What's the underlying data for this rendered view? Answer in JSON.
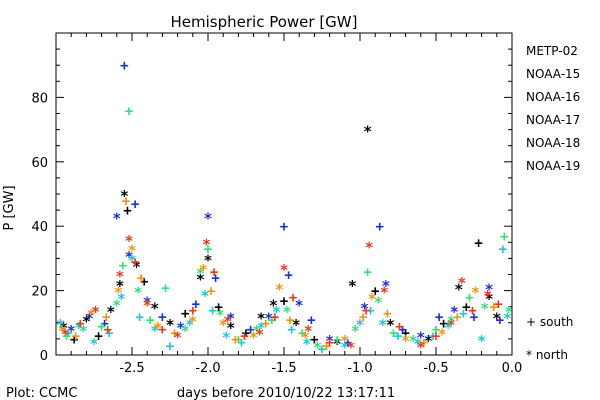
{
  "chart_data": {
    "type": "scatter",
    "title": "Hemispheric Power [GW]",
    "xlabel": "days before 2010/10/22 13:17:11",
    "ylabel": "P [GW]",
    "xlim": [
      -3.0,
      0.0
    ],
    "ylim": [
      0,
      100
    ],
    "x_ticks": [
      {
        "value": -2.5,
        "label": "-2.5"
      },
      {
        "value": -2.0,
        "label": "-2.0"
      },
      {
        "value": -1.5,
        "label": "-1.5"
      },
      {
        "value": -1.0,
        "label": "-1.0"
      },
      {
        "value": -0.5,
        "label": "-0.5"
      },
      {
        "value": 0.0,
        "label": "0.0"
      }
    ],
    "y_ticks": [
      {
        "value": 0,
        "label": "0"
      },
      {
        "value": 20,
        "label": "20"
      },
      {
        "value": 40,
        "label": "40"
      },
      {
        "value": 60,
        "label": "60"
      },
      {
        "value": 80,
        "label": "80"
      }
    ],
    "markers": [
      {
        "symbol": "+",
        "label": "+ south"
      },
      {
        "symbol": "*",
        "label": "* north"
      }
    ],
    "series": [
      {
        "name": "METP-02",
        "color": "#000000",
        "points": [
          {
            "x": -2.95,
            "y": 9,
            "m": "*"
          },
          {
            "x": -2.88,
            "y": 5,
            "m": "+"
          },
          {
            "x": -2.8,
            "y": 11,
            "m": "*"
          },
          {
            "x": -2.72,
            "y": 6,
            "m": "+"
          },
          {
            "x": -2.64,
            "y": 14,
            "m": "*"
          },
          {
            "x": -2.58,
            "y": 22,
            "m": "*"
          },
          {
            "x": -2.55,
            "y": 50,
            "m": "*"
          },
          {
            "x": -2.53,
            "y": 45,
            "m": "+"
          },
          {
            "x": -2.47,
            "y": 28,
            "m": "*"
          },
          {
            "x": -2.42,
            "y": 23,
            "m": "+"
          },
          {
            "x": -2.35,
            "y": 15,
            "m": "*"
          },
          {
            "x": -2.25,
            "y": 10,
            "m": "*"
          },
          {
            "x": -2.15,
            "y": 13,
            "m": "+"
          },
          {
            "x": -2.05,
            "y": 24,
            "m": "*"
          },
          {
            "x": -2.0,
            "y": 30,
            "m": "*"
          },
          {
            "x": -1.93,
            "y": 15,
            "m": "+"
          },
          {
            "x": -1.85,
            "y": 9,
            "m": "*"
          },
          {
            "x": -1.75,
            "y": 7,
            "m": "+"
          },
          {
            "x": -1.65,
            "y": 12,
            "m": "*"
          },
          {
            "x": -1.57,
            "y": 16,
            "m": "*"
          },
          {
            "x": -1.5,
            "y": 17,
            "m": "+"
          },
          {
            "x": -1.42,
            "y": 10,
            "m": "*"
          },
          {
            "x": -1.3,
            "y": 5,
            "m": "+"
          },
          {
            "x": -1.15,
            "y": 4,
            "m": "*"
          },
          {
            "x": -1.05,
            "y": 22,
            "m": "*"
          },
          {
            "x": -0.95,
            "y": 70,
            "m": "*"
          },
          {
            "x": -0.9,
            "y": 20,
            "m": "+"
          },
          {
            "x": -0.8,
            "y": 10,
            "m": "*"
          },
          {
            "x": -0.7,
            "y": 7,
            "m": "+"
          },
          {
            "x": -0.55,
            "y": 5,
            "m": "*"
          },
          {
            "x": -0.45,
            "y": 10,
            "m": "+"
          },
          {
            "x": -0.35,
            "y": 21,
            "m": "*"
          },
          {
            "x": -0.3,
            "y": 15,
            "m": "+"
          },
          {
            "x": -0.22,
            "y": 35,
            "m": "+"
          },
          {
            "x": -0.15,
            "y": 18,
            "m": "*"
          },
          {
            "x": -0.1,
            "y": 12,
            "m": "*"
          }
        ]
      },
      {
        "name": "NOAA-15",
        "color": "#1a2fd6",
        "points": [
          {
            "x": -2.9,
            "y": 8,
            "m": "*"
          },
          {
            "x": -2.78,
            "y": 12,
            "m": "*"
          },
          {
            "x": -2.68,
            "y": 10,
            "m": "+"
          },
          {
            "x": -2.6,
            "y": 43,
            "m": "*"
          },
          {
            "x": -2.55,
            "y": 90,
            "m": "+"
          },
          {
            "x": -2.52,
            "y": 31,
            "m": "*"
          },
          {
            "x": -2.48,
            "y": 47,
            "m": "+"
          },
          {
            "x": -2.4,
            "y": 17,
            "m": "*"
          },
          {
            "x": -2.3,
            "y": 12,
            "m": "+"
          },
          {
            "x": -2.18,
            "y": 9,
            "m": "*"
          },
          {
            "x": -2.08,
            "y": 16,
            "m": "+"
          },
          {
            "x": -2.0,
            "y": 43,
            "m": "*"
          },
          {
            "x": -1.95,
            "y": 24,
            "m": "+"
          },
          {
            "x": -1.85,
            "y": 12,
            "m": "*"
          },
          {
            "x": -1.72,
            "y": 8,
            "m": "+"
          },
          {
            "x": -1.6,
            "y": 12,
            "m": "*"
          },
          {
            "x": -1.5,
            "y": 40,
            "m": "+"
          },
          {
            "x": -1.47,
            "y": 25,
            "m": "+"
          },
          {
            "x": -1.4,
            "y": 16,
            "m": "*"
          },
          {
            "x": -1.32,
            "y": 11,
            "m": "+"
          },
          {
            "x": -1.2,
            "y": 5,
            "m": "*"
          },
          {
            "x": -1.08,
            "y": 4,
            "m": "+"
          },
          {
            "x": -0.97,
            "y": 15,
            "m": "*"
          },
          {
            "x": -0.87,
            "y": 40,
            "m": "+"
          },
          {
            "x": -0.83,
            "y": 22,
            "m": "*"
          },
          {
            "x": -0.72,
            "y": 8,
            "m": "+"
          },
          {
            "x": -0.6,
            "y": 6,
            "m": "*"
          },
          {
            "x": -0.48,
            "y": 12,
            "m": "+"
          },
          {
            "x": -0.38,
            "y": 14,
            "m": "*"
          },
          {
            "x": -0.25,
            "y": 12,
            "m": "+"
          },
          {
            "x": -0.15,
            "y": 21,
            "m": "*"
          },
          {
            "x": -0.08,
            "y": 11,
            "m": "+"
          }
        ]
      },
      {
        "name": "NOAA-16",
        "color": "#22c4e0",
        "points": [
          {
            "x": -2.97,
            "y": 10,
            "m": "*"
          },
          {
            "x": -2.92,
            "y": 7,
            "m": "+"
          },
          {
            "x": -2.85,
            "y": 9,
            "m": "*"
          },
          {
            "x": -2.75,
            "y": 4,
            "m": "*"
          },
          {
            "x": -2.65,
            "y": 7,
            "m": "+"
          },
          {
            "x": -2.57,
            "y": 18,
            "m": "*"
          },
          {
            "x": -2.5,
            "y": 30,
            "m": "*"
          },
          {
            "x": -2.45,
            "y": 12,
            "m": "+"
          },
          {
            "x": -2.35,
            "y": 8,
            "m": "*"
          },
          {
            "x": -2.25,
            "y": 3,
            "m": "+"
          },
          {
            "x": -2.12,
            "y": 10,
            "m": "*"
          },
          {
            "x": -2.02,
            "y": 19,
            "m": "*"
          },
          {
            "x": -1.97,
            "y": 14,
            "m": "+"
          },
          {
            "x": -1.88,
            "y": 6,
            "m": "*"
          },
          {
            "x": -1.78,
            "y": 4,
            "m": "+"
          },
          {
            "x": -1.65,
            "y": 9,
            "m": "*"
          },
          {
            "x": -1.55,
            "y": 14,
            "m": "*"
          },
          {
            "x": -1.45,
            "y": 8,
            "m": "+"
          },
          {
            "x": -1.35,
            "y": 4,
            "m": "*"
          },
          {
            "x": -1.25,
            "y": 2,
            "m": "+"
          },
          {
            "x": -1.1,
            "y": 3,
            "m": "*"
          },
          {
            "x": -1.0,
            "y": 10,
            "m": "*"
          },
          {
            "x": -0.93,
            "y": 14,
            "m": "+"
          },
          {
            "x": -0.85,
            "y": 10,
            "m": "*"
          },
          {
            "x": -0.75,
            "y": 6,
            "m": "+"
          },
          {
            "x": -0.62,
            "y": 4,
            "m": "*"
          },
          {
            "x": -0.52,
            "y": 6,
            "m": "+"
          },
          {
            "x": -0.42,
            "y": 9,
            "m": "*"
          },
          {
            "x": -0.32,
            "y": 13,
            "m": "+"
          },
          {
            "x": -0.2,
            "y": 5,
            "m": "*"
          },
          {
            "x": -0.06,
            "y": 33,
            "m": "+"
          },
          {
            "x": -0.03,
            "y": 12,
            "m": "*"
          }
        ]
      },
      {
        "name": "NOAA-17",
        "color": "#33e07a",
        "points": [
          {
            "x": -2.93,
            "y": 6,
            "m": "+"
          },
          {
            "x": -2.82,
            "y": 8,
            "m": "*"
          },
          {
            "x": -2.7,
            "y": 9,
            "m": "+"
          },
          {
            "x": -2.6,
            "y": 16,
            "m": "*"
          },
          {
            "x": -2.56,
            "y": 28,
            "m": "+"
          },
          {
            "x": -2.52,
            "y": 76,
            "m": "+"
          },
          {
            "x": -2.46,
            "y": 20,
            "m": "*"
          },
          {
            "x": -2.38,
            "y": 11,
            "m": "+"
          },
          {
            "x": -2.28,
            "y": 21,
            "m": "+"
          },
          {
            "x": -2.15,
            "y": 8,
            "m": "*"
          },
          {
            "x": -2.05,
            "y": 26,
            "m": "*"
          },
          {
            "x": -2.0,
            "y": 33,
            "m": "+"
          },
          {
            "x": -1.92,
            "y": 13,
            "m": "*"
          },
          {
            "x": -1.8,
            "y": 5,
            "m": "+"
          },
          {
            "x": -1.68,
            "y": 8,
            "m": "*"
          },
          {
            "x": -1.58,
            "y": 11,
            "m": "+"
          },
          {
            "x": -1.48,
            "y": 14,
            "m": "*"
          },
          {
            "x": -1.38,
            "y": 7,
            "m": "+"
          },
          {
            "x": -1.28,
            "y": 3,
            "m": "*"
          },
          {
            "x": -1.15,
            "y": 5,
            "m": "+"
          },
          {
            "x": -1.03,
            "y": 8,
            "m": "*"
          },
          {
            "x": -0.95,
            "y": 26,
            "m": "+"
          },
          {
            "x": -0.88,
            "y": 17,
            "m": "*"
          },
          {
            "x": -0.78,
            "y": 7,
            "m": "+"
          },
          {
            "x": -0.65,
            "y": 5,
            "m": "*"
          },
          {
            "x": -0.5,
            "y": 8,
            "m": "+"
          },
          {
            "x": -0.4,
            "y": 11,
            "m": "*"
          },
          {
            "x": -0.28,
            "y": 18,
            "m": "+"
          },
          {
            "x": -0.18,
            "y": 15,
            "m": "*"
          },
          {
            "x": -0.05,
            "y": 37,
            "m": "+"
          },
          {
            "x": -0.02,
            "y": 14,
            "m": "*"
          }
        ]
      },
      {
        "name": "NOAA-18",
        "color": "#f0960e",
        "points": [
          {
            "x": -2.96,
            "y": 8,
            "m": "*"
          },
          {
            "x": -2.87,
            "y": 6,
            "m": "+"
          },
          {
            "x": -2.77,
            "y": 13,
            "m": "*"
          },
          {
            "x": -2.67,
            "y": 12,
            "m": "+"
          },
          {
            "x": -2.59,
            "y": 20,
            "m": "*"
          },
          {
            "x": -2.54,
            "y": 48,
            "m": "+"
          },
          {
            "x": -2.5,
            "y": 33,
            "m": "*"
          },
          {
            "x": -2.44,
            "y": 24,
            "m": "+"
          },
          {
            "x": -2.33,
            "y": 9,
            "m": "*"
          },
          {
            "x": -2.22,
            "y": 7,
            "m": "+"
          },
          {
            "x": -2.1,
            "y": 11,
            "m": "*"
          },
          {
            "x": -2.03,
            "y": 27,
            "m": "*"
          },
          {
            "x": -1.98,
            "y": 20,
            "m": "+"
          },
          {
            "x": -1.9,
            "y": 10,
            "m": "*"
          },
          {
            "x": -1.82,
            "y": 5,
            "m": "+"
          },
          {
            "x": -1.7,
            "y": 6,
            "m": "*"
          },
          {
            "x": -1.62,
            "y": 10,
            "m": "+"
          },
          {
            "x": -1.53,
            "y": 21,
            "m": "*"
          },
          {
            "x": -1.46,
            "y": 11,
            "m": "+"
          },
          {
            "x": -1.36,
            "y": 6,
            "m": "*"
          },
          {
            "x": -1.22,
            "y": 3,
            "m": "+"
          },
          {
            "x": -1.1,
            "y": 5,
            "m": "*"
          },
          {
            "x": -0.98,
            "y": 12,
            "m": "+"
          },
          {
            "x": -0.92,
            "y": 18,
            "m": "*"
          },
          {
            "x": -0.82,
            "y": 13,
            "m": "+"
          },
          {
            "x": -0.7,
            "y": 5,
            "m": "*"
          },
          {
            "x": -0.58,
            "y": 4,
            "m": "+"
          },
          {
            "x": -0.46,
            "y": 7,
            "m": "*"
          },
          {
            "x": -0.36,
            "y": 12,
            "m": "+"
          },
          {
            "x": -0.24,
            "y": 20,
            "m": "*"
          },
          {
            "x": -0.12,
            "y": 15,
            "m": "+"
          }
        ]
      },
      {
        "name": "NOAA-19",
        "color": "#e83b1e",
        "points": [
          {
            "x": -2.94,
            "y": 7,
            "m": "*"
          },
          {
            "x": -2.84,
            "y": 10,
            "m": "+"
          },
          {
            "x": -2.74,
            "y": 14,
            "m": "*"
          },
          {
            "x": -2.66,
            "y": 8,
            "m": "+"
          },
          {
            "x": -2.58,
            "y": 25,
            "m": "*"
          },
          {
            "x": -2.52,
            "y": 36,
            "m": "*"
          },
          {
            "x": -2.48,
            "y": 29,
            "m": "+"
          },
          {
            "x": -2.4,
            "y": 16,
            "m": "*"
          },
          {
            "x": -2.3,
            "y": 8,
            "m": "+"
          },
          {
            "x": -2.2,
            "y": 6,
            "m": "*"
          },
          {
            "x": -2.1,
            "y": 14,
            "m": "+"
          },
          {
            "x": -2.01,
            "y": 35,
            "m": "*"
          },
          {
            "x": -1.96,
            "y": 26,
            "m": "+"
          },
          {
            "x": -1.87,
            "y": 11,
            "m": "*"
          },
          {
            "x": -1.76,
            "y": 6,
            "m": "+"
          },
          {
            "x": -1.66,
            "y": 7,
            "m": "*"
          },
          {
            "x": -1.56,
            "y": 12,
            "m": "+"
          },
          {
            "x": -1.5,
            "y": 27,
            "m": "*"
          },
          {
            "x": -1.44,
            "y": 18,
            "m": "+"
          },
          {
            "x": -1.34,
            "y": 8,
            "m": "*"
          },
          {
            "x": -1.2,
            "y": 4,
            "m": "+"
          },
          {
            "x": -1.06,
            "y": 3,
            "m": "*"
          },
          {
            "x": -0.96,
            "y": 14,
            "m": "+"
          },
          {
            "x": -0.94,
            "y": 34,
            "m": "*"
          },
          {
            "x": -0.84,
            "y": 20,
            "m": "*"
          },
          {
            "x": -0.74,
            "y": 9,
            "m": "+"
          },
          {
            "x": -0.6,
            "y": 3,
            "m": "*"
          },
          {
            "x": -0.5,
            "y": 6,
            "m": "+"
          },
          {
            "x": -0.4,
            "y": 10,
            "m": "*"
          },
          {
            "x": -0.33,
            "y": 23,
            "m": "*"
          },
          {
            "x": -0.26,
            "y": 14,
            "m": "+"
          },
          {
            "x": -0.16,
            "y": 19,
            "m": "*"
          },
          {
            "x": -0.09,
            "y": 16,
            "m": "+"
          }
        ]
      }
    ]
  },
  "footer": {
    "credit": "Plot: CCMC"
  }
}
